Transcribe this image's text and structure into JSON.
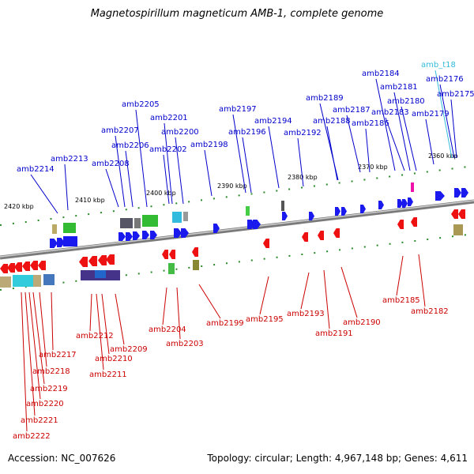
{
  "title": "Magnetospirillum magneticum AMB-1, complete genome",
  "footer": {
    "accession": "Accession: NC_007626",
    "genome_info": "Topology: circular; Length: 4,967,148 bp; Genes: 4,611"
  },
  "colors": {
    "forward_label": "#0000cc",
    "reverse_label": "#cc0000",
    "rna_label": "#33bbdd",
    "backbone": "#888888"
  },
  "kbp_ticks": [
    "2420 kbp",
    "2410 kbp",
    "2400 kbp",
    "2390 kbp",
    "2380 kbp",
    "2370 kbp",
    "2360 kbp"
  ],
  "forward_labels": [
    "amb2214",
    "amb2213",
    "amb2208",
    "amb2207",
    "amb2206",
    "amb2205",
    "amb2202",
    "amb2201",
    "amb2200",
    "amb2198",
    "amb2197",
    "amb2196",
    "amb2194",
    "amb2192",
    "amb2189",
    "amb2188",
    "amb2187",
    "amb2186",
    "amb2184",
    "amb2183",
    "amb2181",
    "amb2180",
    "amb2179",
    "amb2176",
    "amb2175"
  ],
  "rna_labels": [
    "amb_t18"
  ],
  "reverse_labels": [
    "amb2222",
    "amb2221",
    "amb2220",
    "amb2219",
    "amb2218",
    "amb2217",
    "amb2212",
    "amb2211",
    "amb2210",
    "amb2209",
    "amb2204",
    "amb2203",
    "amb2199",
    "amb2195",
    "amb2193",
    "amb2191",
    "amb2190",
    "amb2185",
    "amb2182"
  ]
}
